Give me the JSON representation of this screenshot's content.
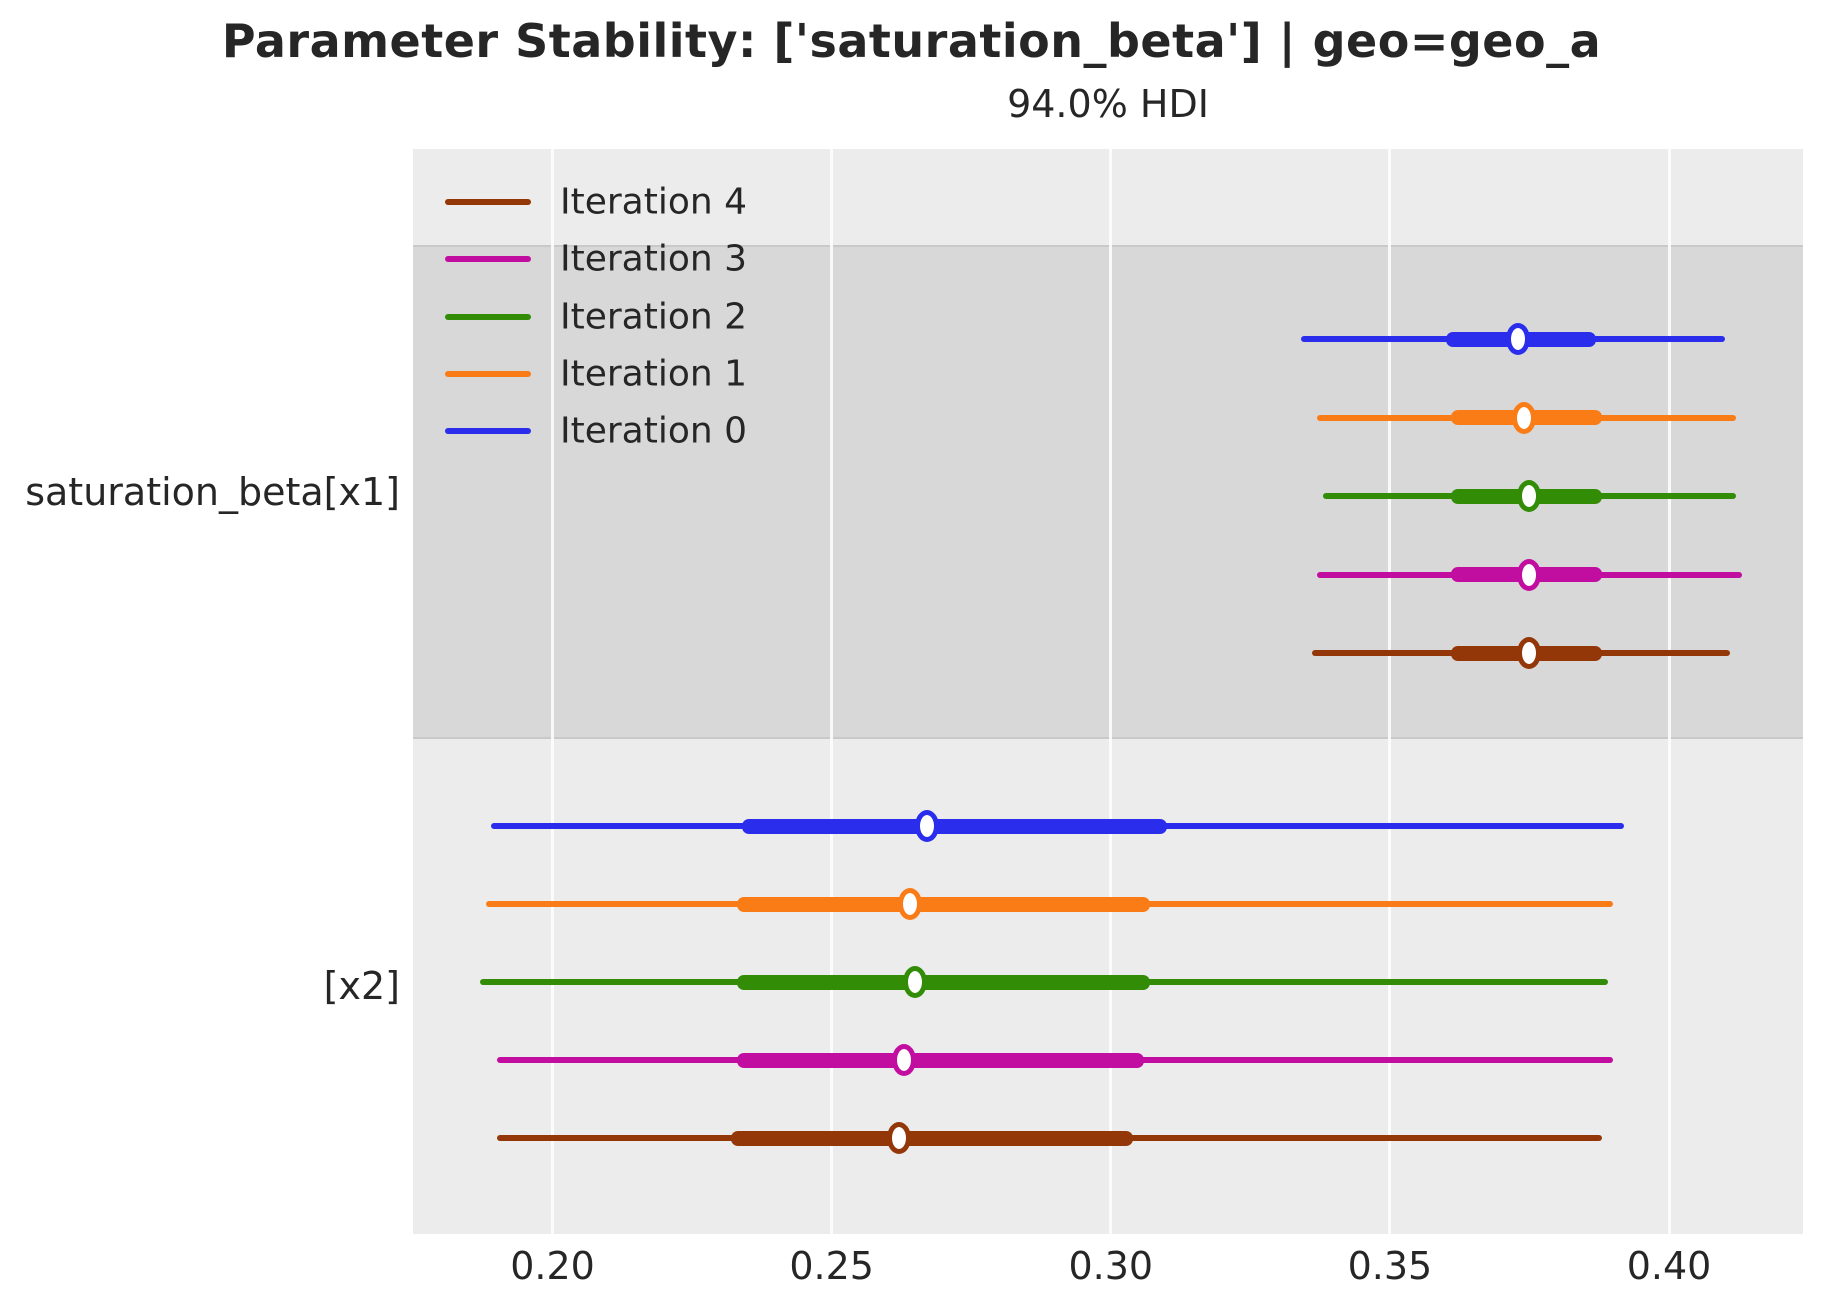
{
  "title": "Parameter Stability: ['saturation_beta'] | geo=geo_a",
  "subtitle": "94.0% HDI",
  "legend": [
    {
      "label": "Iteration 4",
      "color": "#933708"
    },
    {
      "label": "Iteration 3",
      "color": "#c10ea0"
    },
    {
      "label": "Iteration 2",
      "color": "#328c06"
    },
    {
      "label": "Iteration 1",
      "color": "#fa7c17"
    },
    {
      "label": "Iteration 0",
      "color": "#2a2eec"
    }
  ],
  "colors": {
    "axes_background": "#ececec",
    "band_shading": "#d8d8d8",
    "gridline": "#ffffff",
    "text": "#262626",
    "iteration_0": "#2a2eec",
    "iteration_1": "#fa7c17",
    "iteration_2": "#328c06",
    "iteration_3": "#c10ea0",
    "iteration_4": "#933708"
  },
  "chart_data": {
    "type": "forest",
    "title": "Parameter Stability: ['saturation_beta'] | geo=geo_a",
    "subtitle": "94.0% HDI",
    "hdi_prob": 0.94,
    "xlim": [
      0.175,
      0.424
    ],
    "x_ticks": [
      0.2,
      0.25,
      0.3,
      0.35,
      0.4
    ],
    "x_tick_labels": [
      "0.20",
      "0.25",
      "0.30",
      "0.35",
      "0.40"
    ],
    "grid": true,
    "legend_position": "upper-left",
    "groups": [
      {
        "label": "saturation_beta[x1]",
        "shaded": true,
        "rows": [
          {
            "iteration": "Iteration 0",
            "color": "#2a2eec",
            "hdi": [
              0.334,
              0.41
            ],
            "quartile": [
              0.36,
              0.387
            ],
            "median": 0.373
          },
          {
            "iteration": "Iteration 1",
            "color": "#fa7c17",
            "hdi": [
              0.337,
              0.412
            ],
            "quartile": [
              0.361,
              0.388
            ],
            "median": 0.374
          },
          {
            "iteration": "Iteration 2",
            "color": "#328c06",
            "hdi": [
              0.338,
              0.412
            ],
            "quartile": [
              0.361,
              0.388
            ],
            "median": 0.375
          },
          {
            "iteration": "Iteration 3",
            "color": "#c10ea0",
            "hdi": [
              0.337,
              0.413
            ],
            "quartile": [
              0.361,
              0.388
            ],
            "median": 0.375
          },
          {
            "iteration": "Iteration 4",
            "color": "#933708",
            "hdi": [
              0.336,
              0.411
            ],
            "quartile": [
              0.361,
              0.388
            ],
            "median": 0.375
          }
        ]
      },
      {
        "label": "[x2]",
        "shaded": false,
        "rows": [
          {
            "iteration": "Iteration 0",
            "color": "#2a2eec",
            "hdi": [
              0.189,
              0.392
            ],
            "quartile": [
              0.234,
              0.31
            ],
            "median": 0.267
          },
          {
            "iteration": "Iteration 1",
            "color": "#fa7c17",
            "hdi": [
              0.188,
              0.39
            ],
            "quartile": [
              0.233,
              0.307
            ],
            "median": 0.264
          },
          {
            "iteration": "Iteration 2",
            "color": "#328c06",
            "hdi": [
              0.187,
              0.389
            ],
            "quartile": [
              0.233,
              0.307
            ],
            "median": 0.265
          },
          {
            "iteration": "Iteration 3",
            "color": "#c10ea0",
            "hdi": [
              0.19,
              0.39
            ],
            "quartile": [
              0.233,
              0.306
            ],
            "median": 0.263
          },
          {
            "iteration": "Iteration 4",
            "color": "#933708",
            "hdi": [
              0.19,
              0.388
            ],
            "quartile": [
              0.232,
              0.304
            ],
            "median": 0.262
          }
        ]
      }
    ]
  }
}
